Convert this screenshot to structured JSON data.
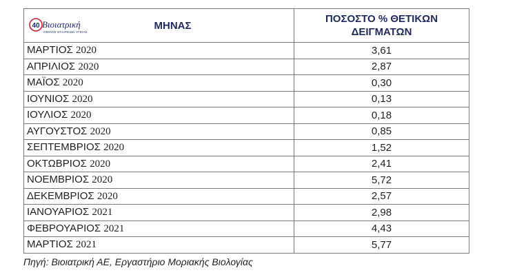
{
  "logo": {
    "name": "Βιοιατρική",
    "badge": "40",
    "tagline": "ΟΜΙΛΟΣ ΕΤΑΙΡΕΙΩΝ ΥΓΕΙΑΣ"
  },
  "table": {
    "col_month": "ΜΗΝΑΣ",
    "col_pct": "ΠΟΣΟΣΤΟ % ΘΕΤΙΚΩΝ ΔΕΙΓΜΑΤΩΝ",
    "rows": [
      {
        "month": "ΜΑΡΤΙΟΣ",
        "year": "2020",
        "value": "3,61"
      },
      {
        "month": "ΑΠΡΙΛΙΟΣ",
        "year": "2020",
        "value": "2,87"
      },
      {
        "month": "ΜΑΪΟΣ",
        "year": "2020",
        "value": "0,30"
      },
      {
        "month": "ΙΟΥΝΙΟΣ",
        "year": "2020",
        "value": "0,13"
      },
      {
        "month": "ΙΟΥΛΙΟΣ",
        "year": "2020",
        "value": "0,18"
      },
      {
        "month": "ΑΥΓΟΥΣΤΟΣ",
        "year": "2020",
        "value": "0,85"
      },
      {
        "month": "ΣΕΠΤΕΜΒΡΙΟΣ",
        "year": "2020",
        "value": "1,52"
      },
      {
        "month": "ΟΚΤΩΒΡΙΟΣ",
        "year": "2020",
        "value": "2,41"
      },
      {
        "month": "ΝΟΕΜΒΡΙΟΣ",
        "year": "2020",
        "value": "5,72"
      },
      {
        "month": "ΔΕΚΕΜΒΡΙΟΣ",
        "year": "2020",
        "value": "2,57"
      },
      {
        "month": "ΙΑΝΟΥΑΡΙΟΣ",
        "year": "2021",
        "value": "2,98"
      },
      {
        "month": "ΦΕΒΡΟΥΑΡΙΟΣ",
        "year": "2021",
        "value": "4,43"
      },
      {
        "month": "ΜΑΡΤΙΟΣ",
        "year": "2021",
        "value": "5,77"
      }
    ]
  },
  "source": "Πηγή: Βιοιατρική ΑΕ, Εργαστήριο Μοριακής Βιολογίας",
  "colors": {
    "logo_blue": "#1c2a6b",
    "logo_red": "#c8202f",
    "header_text": "#1f2a5a",
    "border": "#7a7a7a"
  }
}
